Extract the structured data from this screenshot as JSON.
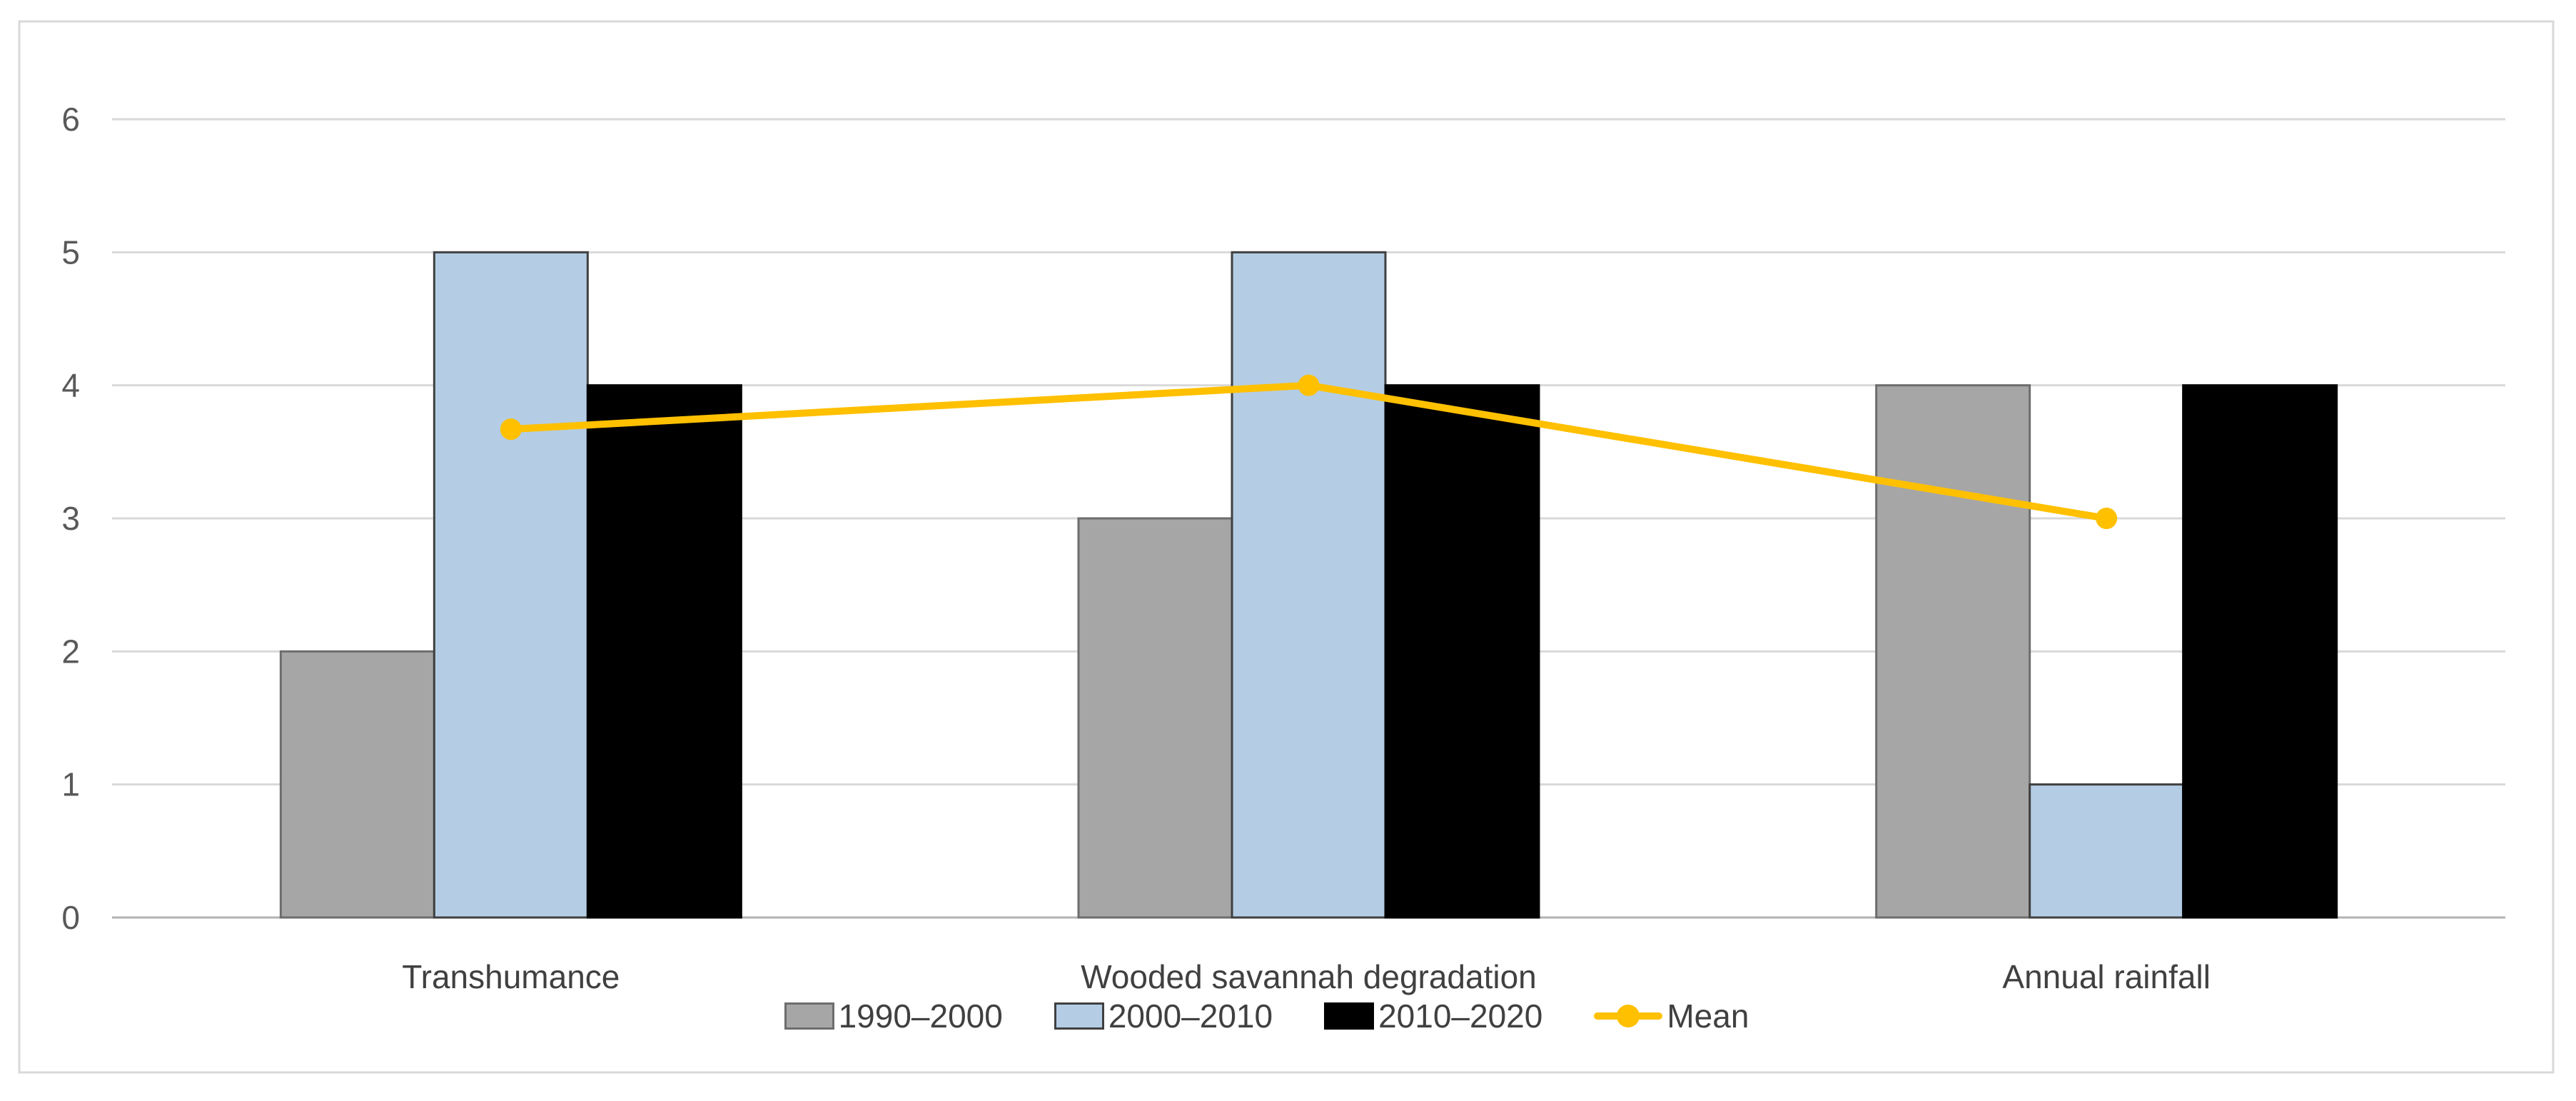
{
  "figure": {
    "background": "#ffffff",
    "border_color": "#d9d9d9"
  },
  "chart_data": {
    "type": "bar",
    "subtype": "grouped-bars-with-line",
    "title": "",
    "xlabel": "",
    "ylabel": "",
    "categories": [
      "Transhumance",
      "Wooded savannah degradation",
      "Annual rainfall"
    ],
    "series": [
      {
        "name": "1990–2000",
        "type": "bar",
        "values": [
          2,
          3,
          4
        ],
        "fill": "#a6a6a6",
        "stroke": "#6d6d6d"
      },
      {
        "name": "2000–2010",
        "type": "bar",
        "values": [
          5,
          5,
          1
        ],
        "fill": "#b4cde4",
        "stroke": "#404040"
      },
      {
        "name": "2010–2020",
        "type": "bar",
        "values": [
          4,
          4,
          4
        ],
        "fill": "#000000",
        "stroke": "#000000"
      },
      {
        "name": "Mean",
        "type": "line",
        "values": [
          3.67,
          4,
          3
        ],
        "color": "#ffc000"
      }
    ],
    "y_axis": {
      "min": 0,
      "max": 6,
      "step": 1,
      "tick_labels": [
        "0",
        "1",
        "2",
        "3",
        "4",
        "5",
        "6"
      ]
    },
    "ylim": [
      0,
      6
    ],
    "grid": "horizontal",
    "grid_color": "#d9d9d9",
    "baseline_color": "#b3b3b3",
    "tick_label_color": "#595959",
    "category_label_color": "#404040",
    "legend_position": "bottom"
  }
}
